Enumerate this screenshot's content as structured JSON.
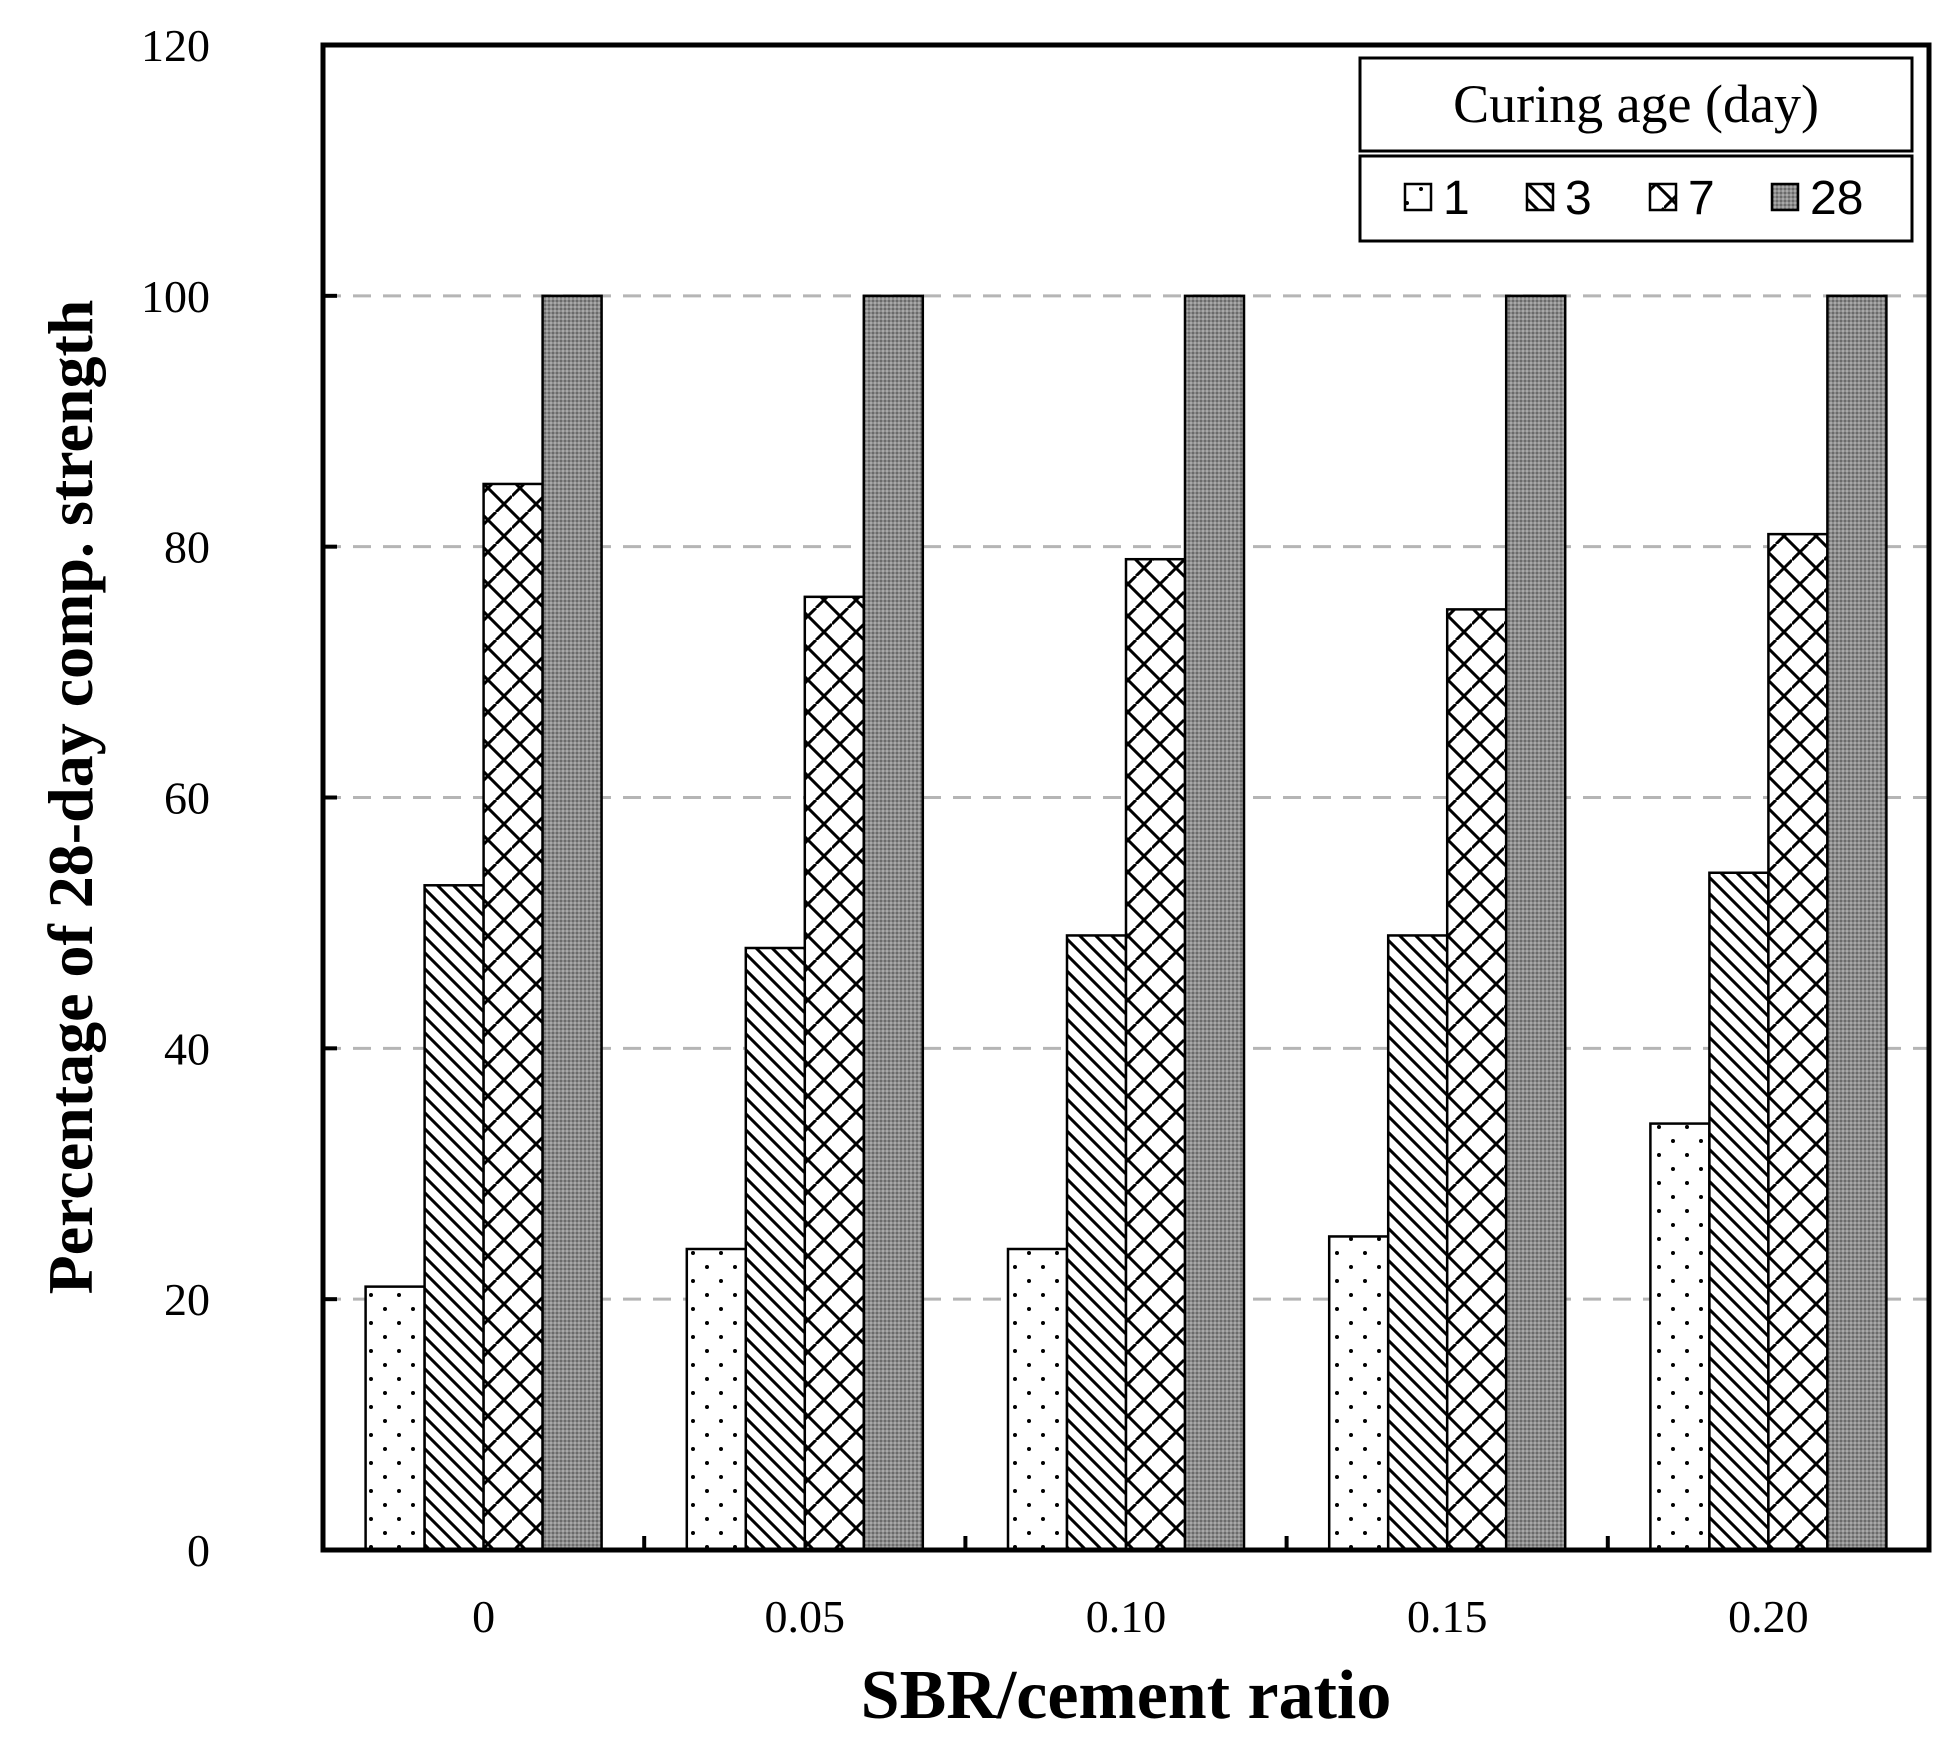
{
  "chart_data": {
    "type": "bar",
    "title": "",
    "xlabel": "SBR/cement ratio",
    "ylabel": "Percentage of 28-day comp. strength",
    "categories": [
      "0",
      "0.05",
      "0.10",
      "0.15",
      "0.20"
    ],
    "ylim": [
      0,
      120
    ],
    "yticks": [
      0,
      20,
      40,
      60,
      80,
      100,
      120
    ],
    "gridlines": "dashed horizontal at 20-100",
    "legend": {
      "title": "Curing age (day)",
      "placement": "top-right"
    },
    "series": [
      {
        "name": "1",
        "pattern": "dots",
        "values": [
          21,
          24,
          24,
          25,
          34
        ]
      },
      {
        "name": "3",
        "pattern": "diagonal-lines",
        "values": [
          53,
          48,
          49,
          49,
          54
        ]
      },
      {
        "name": "7",
        "pattern": "brick-cross",
        "values": [
          85,
          76,
          79,
          75,
          81
        ]
      },
      {
        "name": "28",
        "pattern": "dense-gray",
        "values": [
          100,
          100,
          100,
          100,
          100
        ]
      }
    ]
  }
}
